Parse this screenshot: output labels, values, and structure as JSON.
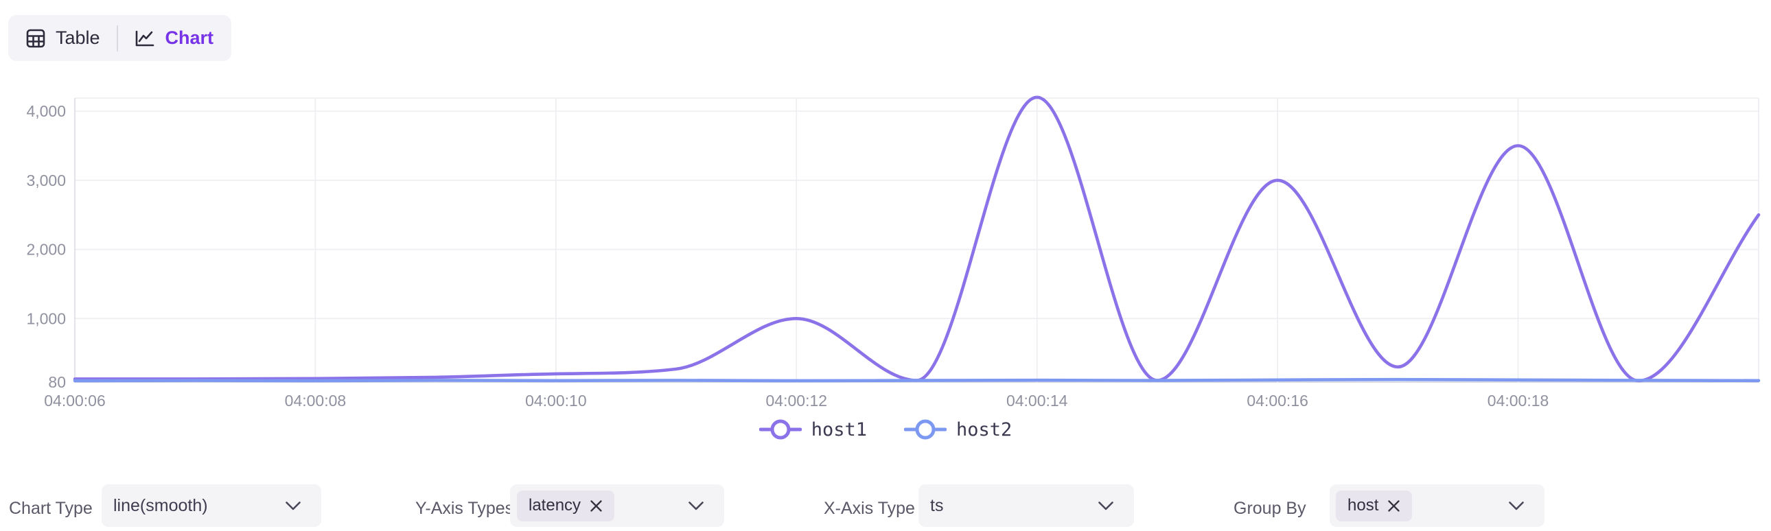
{
  "view_toggle": {
    "table_label": "Table",
    "chart_label": "Chart",
    "active": "Chart"
  },
  "colors": {
    "accent_purple": "#7633e8",
    "series_host1": "#8b72e8",
    "series_host2": "#7d98f0",
    "axis_label": "#90919f",
    "gridline": "#ededf2",
    "axis_line": "#dcdce4"
  },
  "chart_data": {
    "type": "line",
    "subtype": "smooth",
    "grid": true,
    "legend_position": "bottom",
    "xlabel": "",
    "ylabel": "",
    "x_seconds": [
      6,
      7,
      8,
      9,
      10,
      11,
      12,
      13,
      14,
      15,
      16,
      17,
      18,
      19,
      20
    ],
    "series": [
      {
        "name": "host1",
        "color": "#8b72e8",
        "values": [
          125,
          125,
          132,
          150,
          200,
          270,
          1000,
          105,
          4200,
          105,
          3000,
          300,
          3500,
          100,
          2500
        ]
      },
      {
        "name": "host2",
        "color": "#7d98f0",
        "values": [
          100,
          104,
          100,
          106,
          102,
          106,
          100,
          104,
          108,
          104,
          112,
          118,
          112,
          106,
          102
        ]
      }
    ],
    "x_ticks": [
      {
        "t": 6,
        "label": "04:00:06"
      },
      {
        "t": 8,
        "label": "04:00:08"
      },
      {
        "t": 10,
        "label": "04:00:10"
      },
      {
        "t": 12,
        "label": "04:00:12"
      },
      {
        "t": 14,
        "label": "04:00:14"
      },
      {
        "t": 16,
        "label": "04:00:16"
      },
      {
        "t": 18,
        "label": "04:00:18"
      },
      {
        "t": 20,
        "label": ""
      }
    ],
    "y_ticks": [
      {
        "value": 80,
        "label": "80"
      },
      {
        "value": 1000,
        "label": "1,000"
      },
      {
        "value": 2000,
        "label": "2,000"
      },
      {
        "value": 3000,
        "label": "3,000"
      },
      {
        "value": 4000,
        "label": "4,000"
      }
    ],
    "ylim": [
      80,
      4190
    ]
  },
  "controls": {
    "chart_type": {
      "label": "Chart Type",
      "value": "line(smooth)"
    },
    "y_axis_types": {
      "label": "Y-Axis Types",
      "tags": [
        "latency"
      ]
    },
    "x_axis_type": {
      "label": "X-Axis Type",
      "value": "ts"
    },
    "group_by": {
      "label": "Group By",
      "tags": [
        "host"
      ]
    }
  }
}
